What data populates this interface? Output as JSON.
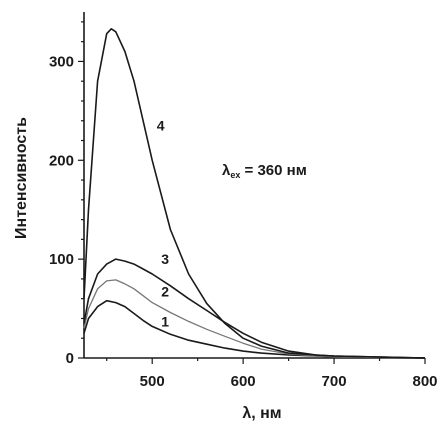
{
  "chart_data": {
    "type": "line",
    "title": "",
    "xlabel": "λ, нм",
    "ylabel": "Интенсивность",
    "xlim": [
      425,
      800
    ],
    "ylim": [
      0,
      350
    ],
    "x_ticks": [
      500,
      600,
      700,
      800
    ],
    "y_ticks": [
      0,
      100,
      200,
      300
    ],
    "grid": false,
    "annotation": {
      "symbol": "λ",
      "subscript": "ex",
      "text": " = 360 нм"
    },
    "series": [
      {
        "label": "1",
        "color": "#1a1a1a",
        "x": [
          425,
          430,
          440,
          450,
          460,
          470,
          480,
          490,
          500,
          520,
          540,
          560,
          580,
          600,
          620,
          650,
          680,
          700,
          750,
          800
        ],
        "y": [
          25,
          40,
          52,
          58,
          56,
          52,
          45,
          38,
          32,
          24,
          18,
          14,
          10,
          7,
          5,
          3,
          2,
          1,
          0.5,
          0
        ]
      },
      {
        "label": "2",
        "color": "#777777",
        "x": [
          425,
          430,
          440,
          450,
          460,
          470,
          480,
          490,
          500,
          520,
          540,
          560,
          580,
          600,
          620,
          650,
          680,
          700,
          750,
          800
        ],
        "y": [
          30,
          50,
          70,
          78,
          79,
          75,
          70,
          63,
          56,
          46,
          37,
          29,
          22,
          15,
          9,
          4,
          2,
          1,
          0.5,
          0
        ]
      },
      {
        "label": "3",
        "color": "#1a1a1a",
        "x": [
          425,
          430,
          440,
          450,
          460,
          470,
          480,
          490,
          500,
          520,
          540,
          560,
          580,
          600,
          620,
          650,
          680,
          700,
          750,
          800
        ],
        "y": [
          35,
          60,
          85,
          95,
          100,
          98,
          95,
          90,
          85,
          73,
          60,
          48,
          36,
          25,
          16,
          7,
          3,
          2,
          1,
          0
        ]
      },
      {
        "label": "4",
        "color": "#1a1a1a",
        "x": [
          425,
          430,
          440,
          450,
          455,
          460,
          470,
          480,
          490,
          500,
          520,
          540,
          560,
          580,
          600,
          620,
          650,
          680,
          700,
          750,
          800
        ],
        "y": [
          60,
          150,
          280,
          328,
          333,
          330,
          310,
          280,
          240,
          200,
          130,
          85,
          55,
          35,
          20,
          12,
          5,
          3,
          2,
          1,
          0
        ]
      }
    ],
    "curve_label_positions_data": [
      {
        "x": 510,
        "y": 32
      },
      {
        "x": 510,
        "y": 62
      },
      {
        "x": 510,
        "y": 95
      },
      {
        "x": 505,
        "y": 230
      }
    ]
  }
}
